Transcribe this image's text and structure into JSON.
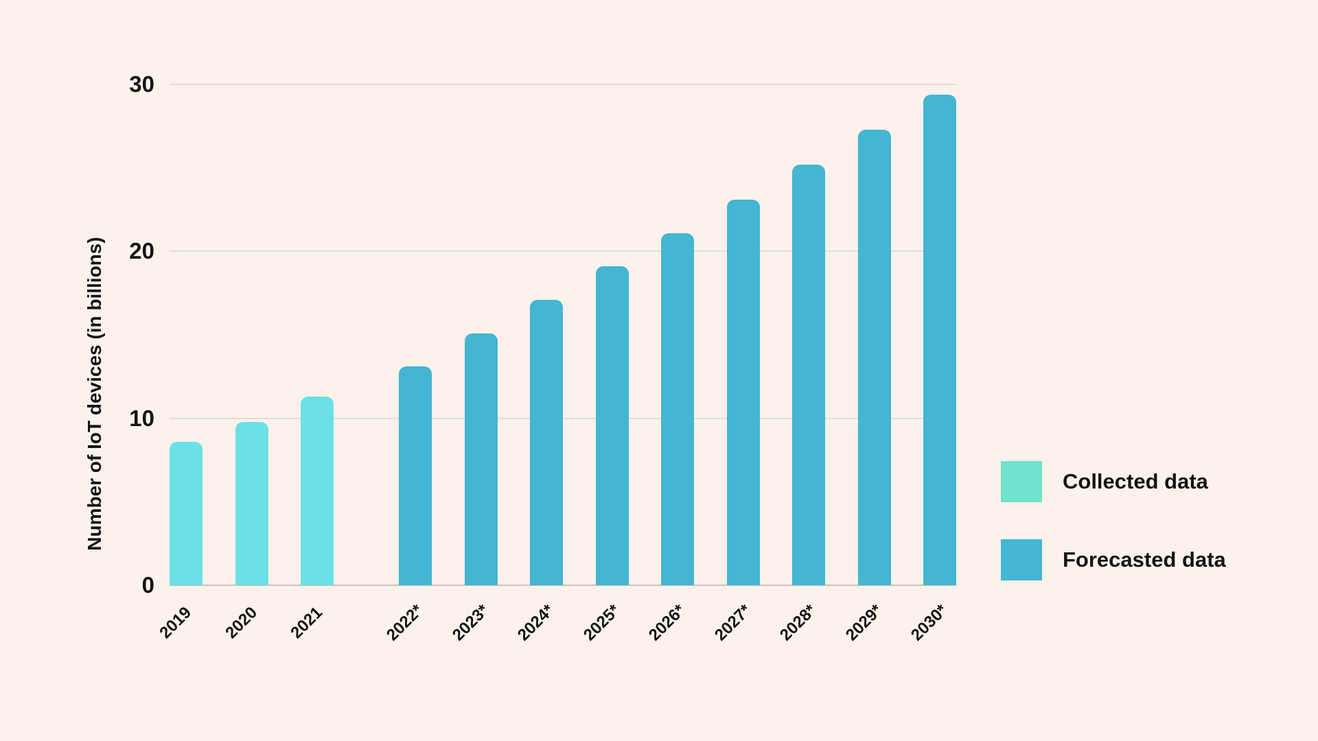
{
  "colors": {
    "background": "#FCF2EB",
    "gridline": "#E1DCD7",
    "axis_line": "#C9C3BE",
    "text": "#141414"
  },
  "chart_data": {
    "type": "bar",
    "title": "",
    "xlabel": "",
    "ylabel": "Number of IoT devices (in billions)",
    "ylim": [
      0,
      30
    ],
    "yticks": [
      0,
      10,
      20,
      30
    ],
    "grid": "horizontal gridlines on",
    "legend_position": "outside-right",
    "categories": [
      "2019",
      "2020",
      "2021",
      "2022*",
      "2023*",
      "2024*",
      "2025*",
      "2026*",
      "2027*",
      "2028*",
      "2029*",
      "2030*"
    ],
    "series": [
      {
        "name": "Collected data",
        "swatch_color": "#6FE3CB",
        "bar_color": "#6BE1E7",
        "categories": [
          "2019",
          "2020",
          "2021"
        ],
        "values": [
          8.6,
          9.8,
          11.3
        ]
      },
      {
        "name": "Forecasted data",
        "swatch_color": "#45B6D3",
        "bar_color": "#44B5D2",
        "categories": [
          "2022*",
          "2023*",
          "2024*",
          "2025*",
          "2026*",
          "2027*",
          "2028*",
          "2029*",
          "2030*"
        ],
        "values": [
          13.1,
          15.1,
          17.1,
          19.1,
          21.1,
          23.1,
          25.2,
          27.3,
          29.4
        ]
      }
    ],
    "layout_note_group_gap": "extra horizontal gap between collected and forecasted bar groups"
  }
}
